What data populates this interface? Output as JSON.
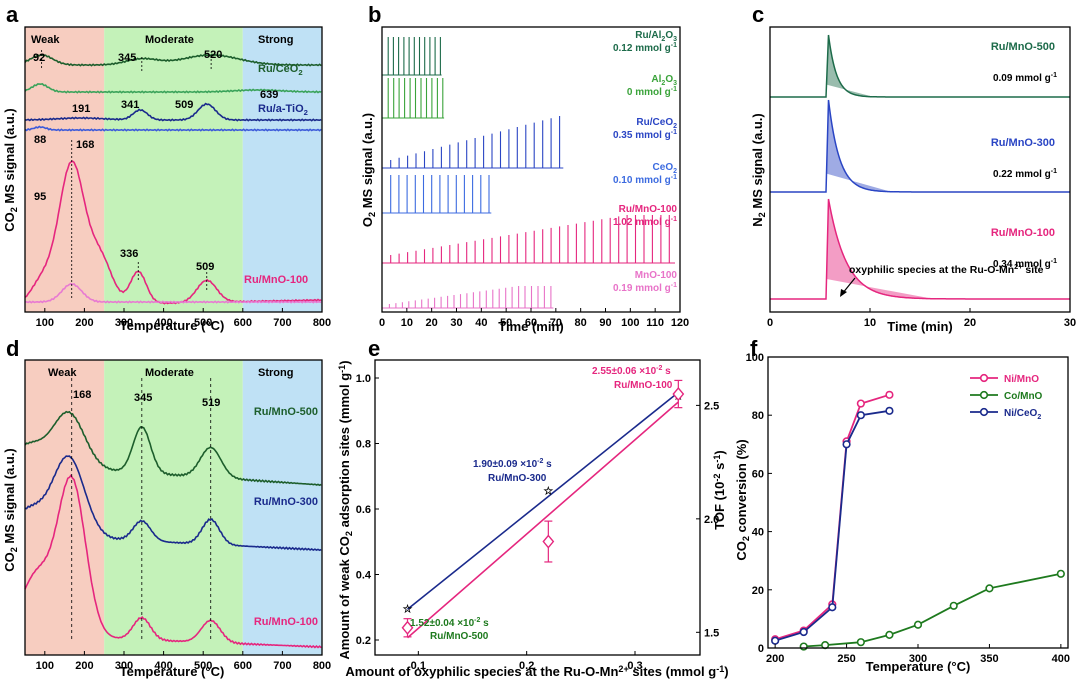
{
  "panel_letters": [
    "a",
    "b",
    "c",
    "d",
    "e",
    "f"
  ],
  "region_labels": [
    "Weak",
    "Moderate",
    "Strong"
  ],
  "chart_data": [
    {
      "panel": "a",
      "type": "line",
      "xlabel": "Temperature (°C)",
      "ylabel": "CO2 MS signal (a.u.)",
      "xlim": [
        50,
        800
      ],
      "xticks": [
        "100",
        "200",
        "300",
        "400",
        "500",
        "600",
        "700",
        "800"
      ],
      "regions": [
        {
          "name": "Weak",
          "range": [
            50,
            250
          ],
          "color": "#f7cdc0"
        },
        {
          "name": "Moderate",
          "range": [
            250,
            600
          ],
          "color": "#c4f2b9"
        },
        {
          "name": "Strong",
          "range": [
            600,
            800
          ],
          "color": "#bfe1f5"
        }
      ],
      "series": [
        {
          "name": "Ru/CeO2",
          "color": "#1d5e2c",
          "peaks": [
            92,
            345,
            520
          ]
        },
        {
          "name": "",
          "color": "#3aa35a",
          "peaks": [
            88,
            639
          ]
        },
        {
          "name": "Ru/a-TiO2",
          "color": "#1a2a8c",
          "peaks": [
            191,
            341,
            509
          ]
        },
        {
          "name": "",
          "color": "#3c5ad9",
          "peaks": [
            88
          ]
        },
        {
          "name": "Ru/MnO-100",
          "color": "#e5267e",
          "peaks": [
            95,
            168,
            336,
            509
          ]
        },
        {
          "name": "",
          "color": "#e87ad2",
          "peaks": [
            168
          ]
        }
      ],
      "peak_labels": [
        "92",
        "345",
        "520",
        "639",
        "191",
        "341",
        "509",
        "88",
        "168",
        "95",
        "336",
        "509"
      ]
    },
    {
      "panel": "b",
      "type": "line",
      "xlabel": "Time (min)",
      "ylabel": "O2 MS signal (a.u.)",
      "xlim": [
        0,
        120
      ],
      "xticks": [
        "0",
        "10",
        "20",
        "30",
        "40",
        "50",
        "60",
        "70",
        "80",
        "90",
        "100",
        "110",
        "120"
      ],
      "series": [
        {
          "name": "Ru/Al2O3",
          "amount": "0.12 mmol g-1",
          "color": "#1d6b4a",
          "end_time": 24
        },
        {
          "name": "Al2O3",
          "amount": "0 mmol g-1",
          "color": "#3aa33a",
          "end_time": 25
        },
        {
          "name": "Ru/CeO2",
          "amount": "0.35 mmol g-1",
          "color": "#2a45c4",
          "end_time": 73
        },
        {
          "name": "CeO2",
          "amount": "0.10 mmol g-1",
          "color": "#3c6be0",
          "end_time": 44
        },
        {
          "name": "Ru/MnO-100",
          "amount": "1.02 mmol g-1",
          "color": "#e5267e",
          "end_time": 118
        },
        {
          "name": "MnO-100",
          "amount": "0.19 mmol g-1",
          "color": "#e873c8",
          "end_time": 69
        }
      ]
    },
    {
      "panel": "c",
      "type": "line",
      "xlabel": "Time (min)",
      "ylabel": "N2 MS signal (a.u.)",
      "xlim": [
        0,
        30
      ],
      "xticks": [
        "0",
        "10",
        "20",
        "30"
      ],
      "series": [
        {
          "name": "Ru/MnO-500",
          "amount": "0.09 mmol g-1",
          "color": "#1d6b4a",
          "pulse_time": 5.6
        },
        {
          "name": "Ru/MnO-300",
          "amount": "0.22 mmol g-1",
          "color": "#2a45c4",
          "pulse_time": 5.6
        },
        {
          "name": "Ru/MnO-100",
          "amount": "0.34 mmol g-1",
          "color": "#e5267e",
          "pulse_time": 5.6
        }
      ],
      "annotation": "oxyphilic species at the Ru-O-Mn2+ site"
    },
    {
      "panel": "d",
      "type": "line",
      "xlabel": "Temperature (°C)",
      "ylabel": "CO2 MS signal (a.u.)",
      "xlim": [
        50,
        800
      ],
      "xticks": [
        "100",
        "200",
        "300",
        "400",
        "500",
        "600",
        "700",
        "800"
      ],
      "regions": [
        {
          "name": "Weak",
          "range": [
            50,
            250
          ],
          "color": "#f7cdc0"
        },
        {
          "name": "Moderate",
          "range": [
            250,
            600
          ],
          "color": "#c4f2b9"
        },
        {
          "name": "Strong",
          "range": [
            600,
            800
          ],
          "color": "#bfe1f5"
        }
      ],
      "series": [
        {
          "name": "Ru/MnO-500",
          "color": "#1d5e2c",
          "peaks": [
            168,
            345,
            519
          ]
        },
        {
          "name": "Ru/MnO-300",
          "color": "#1a2a8c",
          "peaks": [
            168,
            345,
            519
          ]
        },
        {
          "name": "Ru/MnO-100",
          "color": "#e5267e",
          "peaks": [
            168,
            345,
            519
          ]
        }
      ],
      "peak_labels": [
        "168",
        "345",
        "519"
      ]
    },
    {
      "panel": "e",
      "type": "scatter",
      "xlabel": "Amount of oxyphilic species at the Ru-O-Mn2+ sites (mmol g-1)",
      "ylabel": "Amount of weak CO2 adsorption sites (mmol g-1)",
      "y2label": "TOF (10-2 s-1)",
      "xlim": [
        0.06,
        0.36
      ],
      "ylim": [
        0.2,
        1.0
      ],
      "y2lim": [
        1.4,
        2.7
      ],
      "xticks": [
        "0.1",
        "0.2",
        "0.3"
      ],
      "yticks": [
        "0.2",
        "0.4",
        "0.6",
        "0.8",
        "1.0"
      ],
      "y2ticks": [
        "1.5",
        "2.0",
        "2.5"
      ],
      "series": [
        {
          "name": "weak CO2 sites",
          "color": "#1a2a8c",
          "x": [
            0.09,
            0.22,
            0.34
          ],
          "y": [
            0.3,
            0.66,
            0.95
          ]
        },
        {
          "name": "TOF",
          "color": "#e5267e",
          "x": [
            0.09,
            0.22,
            0.34
          ],
          "y": [
            1.52,
            1.9,
            2.55
          ],
          "err": [
            0.04,
            0.09,
            0.06
          ]
        }
      ],
      "point_labels": [
        {
          "value": "1.52±0.04 ×10-2 s",
          "sample": "Ru/MnO-500"
        },
        {
          "value": "1.90±0.09 ×10-2 s",
          "sample": "Ru/MnO-300"
        },
        {
          "value": "2.55±0.06 ×10-2 s",
          "sample": "Ru/MnO-100"
        }
      ]
    },
    {
      "panel": "f",
      "type": "line",
      "xlabel": "Temperature (°C)",
      "ylabel": "CO2 conversion (%)",
      "xlim": [
        195,
        405
      ],
      "ylim": [
        0,
        100
      ],
      "xticks": [
        "200",
        "250",
        "300",
        "350",
        "400"
      ],
      "yticks": [
        "0",
        "20",
        "40",
        "60",
        "80",
        "100"
      ],
      "legend": "top-left",
      "series": [
        {
          "name": "Ni/MnO",
          "color": "#e5267e",
          "x": [
            200,
            220,
            240,
            250,
            260,
            280
          ],
          "y": [
            3,
            6,
            15,
            71,
            84,
            87
          ]
        },
        {
          "name": "Co/MnO",
          "color": "#1e7a1e",
          "x": [
            220,
            235,
            260,
            280,
            300,
            325,
            350,
            400
          ],
          "y": [
            0.5,
            1,
            2,
            4.5,
            8,
            14.5,
            20.5,
            25.5
          ]
        },
        {
          "name": "Ni/CeO2",
          "color": "#1a2a8c",
          "x": [
            200,
            220,
            240,
            250,
            260,
            280
          ],
          "y": [
            2.5,
            5.5,
            14,
            70,
            80,
            81.5
          ]
        }
      ]
    }
  ]
}
